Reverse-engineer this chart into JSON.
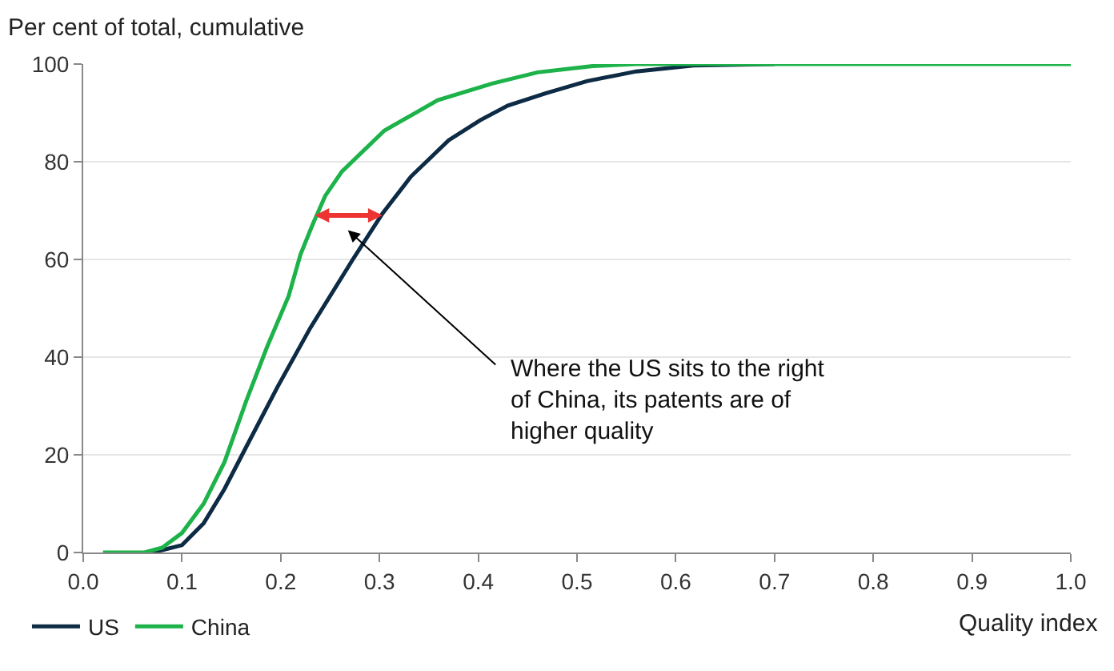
{
  "chart_data": {
    "type": "line",
    "ylabel": "Per cent of total, cumulative",
    "xlabel": "Quality index",
    "xlim": [
      0,
      1
    ],
    "xticks": [
      {
        "value": 0,
        "label": "0.0"
      },
      0.1,
      0.2,
      0.3,
      0.4,
      0.5,
      0.6,
      0.7,
      0.8,
      0.9,
      {
        "value": 1,
        "label": "1.0"
      }
    ],
    "ylim": [
      0,
      100
    ],
    "yticks": [
      0,
      20,
      40,
      60,
      80,
      100
    ],
    "grid": "y",
    "legend": "bottom left",
    "line_style": "solid",
    "marker": "none",
    "series": [
      {
        "name": "US",
        "color": "#0d2b45",
        "x": [
          0.065,
          0.08,
          0.1,
          0.122,
          0.143,
          0.165,
          0.197,
          0.23,
          0.273,
          0.303,
          0.332,
          0.37,
          0.402,
          0.43,
          0.468,
          0.51,
          0.56,
          0.618,
          0.7
        ],
        "values": [
          0,
          0.5,
          1.5,
          6,
          13,
          21.6,
          34,
          46,
          60,
          69.4,
          77,
          84.4,
          88.5,
          91.5,
          94,
          96.5,
          98.5,
          99.7,
          100
        ]
      },
      {
        "name": "China",
        "color": "#1db34a",
        "x": [
          0.02,
          0.062,
          0.08,
          0.1,
          0.122,
          0.143,
          0.165,
          0.186,
          0.208,
          0.22,
          0.232,
          0.245,
          0.262,
          0.305,
          0.359,
          0.414,
          0.46,
          0.516,
          0.56,
          0.7,
          1.0
        ],
        "values": [
          0,
          0,
          1,
          4,
          10,
          18.5,
          31,
          42,
          52.5,
          61,
          67,
          73,
          78,
          86.4,
          92.6,
          96,
          98.3,
          99.6,
          100,
          100,
          100
        ]
      }
    ],
    "annotations": [
      "Where the US sits to the right of China, its patents are of higher quality"
    ]
  }
}
